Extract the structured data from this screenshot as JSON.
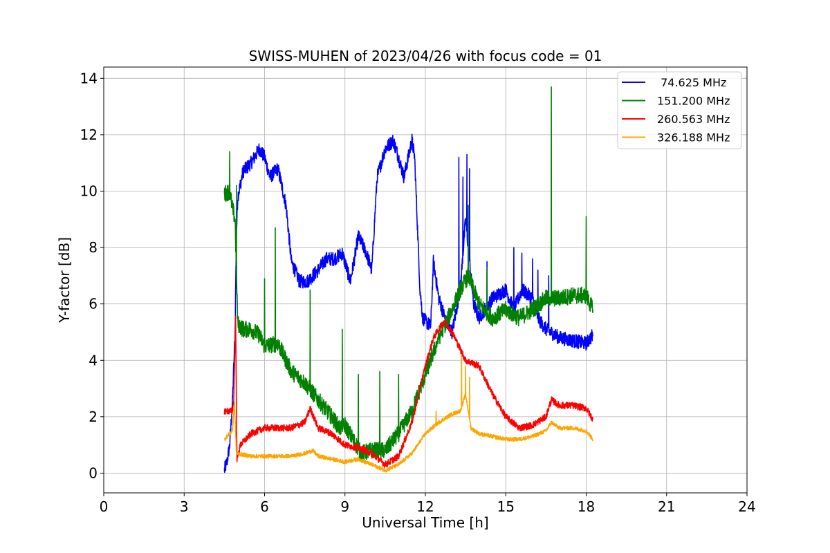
{
  "chart_data": {
    "type": "line",
    "title": "SWISS-MUHEN of 2023/04/26 with focus code = 01",
    "xlabel": "Universal Time [h]",
    "ylabel": "Y-factor [dB]",
    "xlim": [
      0,
      24
    ],
    "ylim": [
      -0.7,
      14.4
    ],
    "xticks": [
      0,
      3,
      6,
      9,
      12,
      15,
      18,
      21,
      24
    ],
    "yticks": [
      0,
      2,
      4,
      6,
      8,
      10,
      12,
      14
    ],
    "grid": true,
    "legend_position": "top-right",
    "series": [
      {
        "name": " 74.625 MHz",
        "color": "#0000ff",
        "noise": 0.25,
        "points": [
          [
            4.5,
            0.1
          ],
          [
            4.6,
            0.4
          ],
          [
            4.7,
            1.0
          ],
          [
            4.8,
            2.5
          ],
          [
            4.9,
            5.0
          ],
          [
            4.95,
            8.5
          ],
          [
            5.0,
            9.8
          ],
          [
            5.2,
            10.7
          ],
          [
            5.5,
            11.0
          ],
          [
            5.8,
            11.5
          ],
          [
            6.0,
            11.2
          ],
          [
            6.2,
            10.5
          ],
          [
            6.5,
            10.8
          ],
          [
            6.8,
            9.5
          ],
          [
            7.0,
            7.5
          ],
          [
            7.3,
            6.8
          ],
          [
            7.6,
            6.8
          ],
          [
            8.0,
            7.2
          ],
          [
            8.3,
            7.6
          ],
          [
            8.6,
            7.6
          ],
          [
            8.9,
            7.8
          ],
          [
            9.2,
            6.8
          ],
          [
            9.5,
            8.4
          ],
          [
            9.8,
            7.8
          ],
          [
            10.0,
            7.2
          ],
          [
            10.2,
            10.5
          ],
          [
            10.5,
            11.5
          ],
          [
            10.8,
            11.8
          ],
          [
            11.0,
            11.2
          ],
          [
            11.2,
            10.5
          ],
          [
            11.5,
            11.8
          ],
          [
            11.6,
            11.2
          ],
          [
            11.8,
            6.5
          ],
          [
            11.9,
            5.5
          ],
          [
            12.2,
            5.2
          ],
          [
            12.3,
            7.5
          ],
          [
            12.5,
            6.2
          ],
          [
            12.8,
            5.3
          ],
          [
            13.0,
            5.0
          ],
          [
            13.3,
            6.5
          ],
          [
            13.5,
            9.0
          ],
          [
            13.6,
            8.0
          ],
          [
            13.8,
            6.0
          ],
          [
            14.0,
            5.5
          ],
          [
            14.5,
            6.2
          ],
          [
            15.0,
            6.5
          ],
          [
            15.3,
            5.8
          ],
          [
            15.6,
            6.5
          ],
          [
            16.0,
            6.2
          ],
          [
            16.2,
            5.5
          ],
          [
            16.5,
            5.1
          ],
          [
            17.0,
            4.8
          ],
          [
            17.5,
            4.7
          ],
          [
            18.0,
            4.6
          ],
          [
            18.25,
            4.9
          ]
        ],
        "spikes": [
          [
            13.25,
            11.2
          ],
          [
            13.4,
            10.5
          ],
          [
            13.55,
            11.3
          ],
          [
            13.65,
            10.8
          ],
          [
            14.3,
            7.5
          ],
          [
            15.3,
            8.0
          ],
          [
            15.6,
            7.8
          ],
          [
            16.0,
            7.6
          ],
          [
            16.2,
            7.2
          ],
          [
            16.6,
            7.0
          ]
        ]
      },
      {
        "name": "151.200 MHz",
        "color": "#008000",
        "noise": 0.3,
        "points": [
          [
            4.5,
            9.9
          ],
          [
            4.7,
            10.0
          ],
          [
            4.8,
            9.4
          ],
          [
            4.9,
            9.0
          ],
          [
            5.0,
            5.3
          ],
          [
            5.2,
            5.1
          ],
          [
            5.5,
            5.1
          ],
          [
            5.8,
            4.9
          ],
          [
            6.0,
            4.5
          ],
          [
            6.5,
            4.6
          ],
          [
            7.0,
            3.6
          ],
          [
            7.5,
            3.2
          ],
          [
            8.0,
            2.6
          ],
          [
            8.5,
            2.0
          ],
          [
            8.8,
            1.6
          ],
          [
            9.0,
            1.7
          ],
          [
            9.3,
            1.2
          ],
          [
            9.6,
            0.7
          ],
          [
            10.0,
            0.8
          ],
          [
            10.5,
            0.8
          ],
          [
            11.0,
            1.4
          ],
          [
            11.5,
            2.2
          ],
          [
            12.0,
            3.5
          ],
          [
            12.5,
            4.8
          ],
          [
            13.0,
            5.8
          ],
          [
            13.3,
            6.5
          ],
          [
            13.6,
            7.0
          ],
          [
            14.0,
            6.0
          ],
          [
            14.5,
            5.5
          ],
          [
            15.0,
            5.8
          ],
          [
            15.5,
            5.5
          ],
          [
            16.0,
            5.8
          ],
          [
            16.5,
            6.2
          ],
          [
            17.0,
            6.2
          ],
          [
            17.5,
            6.3
          ],
          [
            18.0,
            6.3
          ],
          [
            18.25,
            5.8
          ]
        ],
        "spikes": [
          [
            4.7,
            11.4
          ],
          [
            4.95,
            10.2
          ],
          [
            6.4,
            8.7
          ],
          [
            6.0,
            6.9
          ],
          [
            7.7,
            6.5
          ],
          [
            8.9,
            5.1
          ],
          [
            9.5,
            3.5
          ],
          [
            10.3,
            3.6
          ],
          [
            11.0,
            3.5
          ],
          [
            13.6,
            9.5
          ],
          [
            14.3,
            7.3
          ],
          [
            16.7,
            13.7
          ],
          [
            18.0,
            9.1
          ]
        ]
      },
      {
        "name": "260.563 MHz",
        "color": "#ff0000",
        "noise": 0.12,
        "points": [
          [
            4.5,
            2.2
          ],
          [
            4.8,
            2.2
          ],
          [
            4.85,
            2.6
          ],
          [
            4.92,
            5.5
          ],
          [
            4.97,
            0.5
          ],
          [
            5.1,
            1.0
          ],
          [
            5.5,
            1.4
          ],
          [
            6.0,
            1.6
          ],
          [
            6.5,
            1.6
          ],
          [
            7.0,
            1.6
          ],
          [
            7.5,
            1.8
          ],
          [
            7.7,
            2.3
          ],
          [
            8.0,
            1.6
          ],
          [
            8.5,
            1.4
          ],
          [
            9.0,
            1.0
          ],
          [
            9.5,
            0.9
          ],
          [
            10.0,
            0.7
          ],
          [
            10.5,
            0.3
          ],
          [
            11.0,
            0.6
          ],
          [
            11.5,
            1.8
          ],
          [
            12.0,
            3.8
          ],
          [
            12.3,
            4.8
          ],
          [
            12.7,
            5.4
          ],
          [
            13.0,
            5.0
          ],
          [
            13.5,
            4.0
          ],
          [
            14.0,
            3.8
          ],
          [
            14.5,
            2.8
          ],
          [
            15.0,
            2.0
          ],
          [
            15.5,
            1.6
          ],
          [
            16.0,
            1.7
          ],
          [
            16.5,
            2.0
          ],
          [
            16.7,
            2.6
          ],
          [
            17.0,
            2.4
          ],
          [
            17.5,
            2.4
          ],
          [
            18.0,
            2.3
          ],
          [
            18.25,
            1.9
          ]
        ],
        "spikes": []
      },
      {
        "name": "326.188 MHz",
        "color": "#ffa500",
        "noise": 0.07,
        "points": [
          [
            4.5,
            1.2
          ],
          [
            4.8,
            1.5
          ],
          [
            4.88,
            2.5
          ],
          [
            4.95,
            0.7
          ],
          [
            5.5,
            0.6
          ],
          [
            6.0,
            0.6
          ],
          [
            7.0,
            0.6
          ],
          [
            7.5,
            0.7
          ],
          [
            7.8,
            0.8
          ],
          [
            8.0,
            0.6
          ],
          [
            8.5,
            0.5
          ],
          [
            9.0,
            0.4
          ],
          [
            9.5,
            0.5
          ],
          [
            10.0,
            0.3
          ],
          [
            10.5,
            0.1
          ],
          [
            11.0,
            0.3
          ],
          [
            11.5,
            0.7
          ],
          [
            12.0,
            1.4
          ],
          [
            12.5,
            1.8
          ],
          [
            13.0,
            2.1
          ],
          [
            13.3,
            2.2
          ],
          [
            13.5,
            2.8
          ],
          [
            13.7,
            1.6
          ],
          [
            14.0,
            1.4
          ],
          [
            14.5,
            1.3
          ],
          [
            15.0,
            1.2
          ],
          [
            15.5,
            1.2
          ],
          [
            16.0,
            1.3
          ],
          [
            16.5,
            1.5
          ],
          [
            16.7,
            1.8
          ],
          [
            17.0,
            1.6
          ],
          [
            17.5,
            1.6
          ],
          [
            18.0,
            1.5
          ],
          [
            18.25,
            1.2
          ]
        ],
        "spikes": [
          [
            13.35,
            4.2
          ],
          [
            13.5,
            3.8
          ],
          [
            13.65,
            3.4
          ],
          [
            12.4,
            2.2
          ]
        ]
      }
    ]
  }
}
